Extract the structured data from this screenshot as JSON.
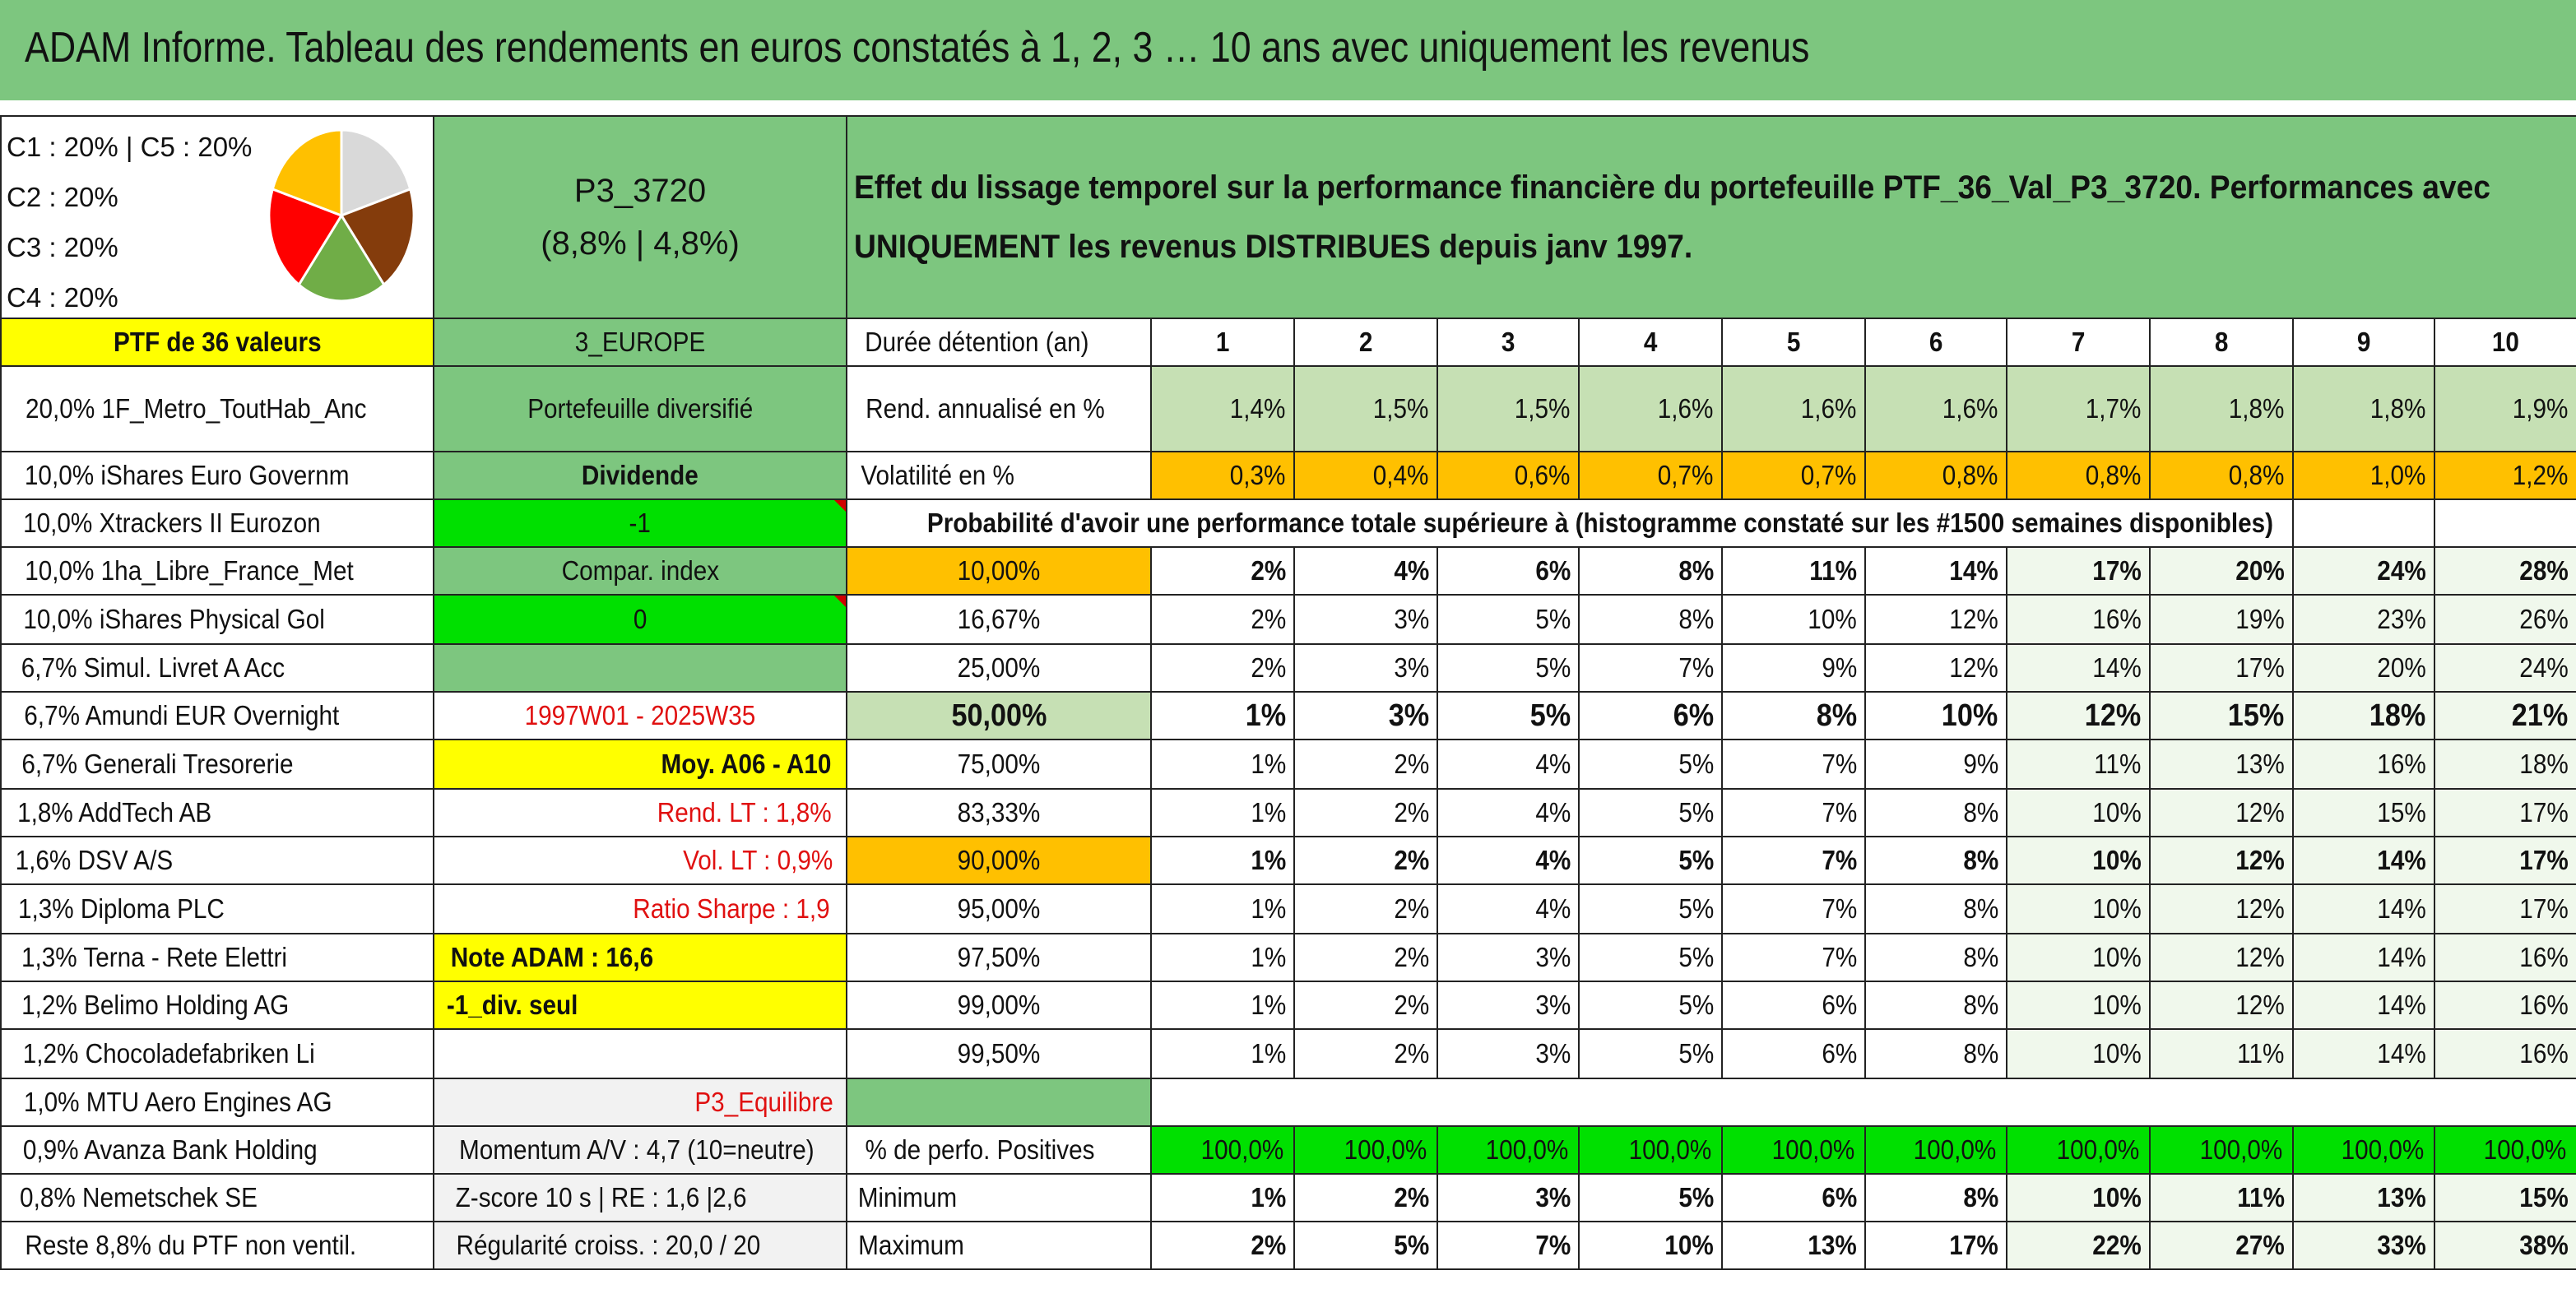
{
  "title": "ADAM Informe. Tableau des rendements en euros constatés à 1, 2, 3 … 10 ans avec uniquement les revenus",
  "allocation_lines": [
    "C1 : 20% | C5 : 20%",
    "C2 : 20%",
    "C3 : 20%",
    "C4 : 20%"
  ],
  "pie": {
    "slices": [
      {
        "label": "C1",
        "value": 20,
        "color": "#d9d9d9"
      },
      {
        "label": "C2",
        "value": 20,
        "color": "#843c0c"
      },
      {
        "label": "C3",
        "value": 20,
        "color": "#70ad47"
      },
      {
        "label": "C4",
        "value": 20,
        "color": "#ff0000"
      },
      {
        "label": "C5",
        "value": 20,
        "color": "#ffc000"
      }
    ]
  },
  "portfolio": {
    "code": "P3_3720",
    "rates": "(8,8% | 4,8%)",
    "count_label": "PTF de 36 valeurs",
    "zone": "3_EUROPE"
  },
  "description": {
    "line1": "Effet du lissage temporel sur la performance financière du portefeuille PTF_36_Val_P3_3720. Performances avec",
    "line2": "UNIQUEMENT les revenus DISTRIBUES depuis janv 1997."
  },
  "headers": {
    "duration": "Durée détention (an)",
    "years": [
      "1",
      "2",
      "3",
      "4",
      "5",
      "6",
      "7",
      "8",
      "9",
      "10"
    ],
    "rend": "Rend. annualisé en %",
    "vol": "Volatilité en %",
    "prob": "Probabilité d'avoir une performance totale supérieure à (histogramme constaté sur les #1500 semaines disponibles)",
    "positive": "% de perfo. Positives",
    "minimum": "Minimum",
    "maximum": "Maximum"
  },
  "rend_values": [
    "1,4%",
    "1,5%",
    "1,5%",
    "1,6%",
    "1,6%",
    "1,6%",
    "1,7%",
    "1,8%",
    "1,8%",
    "1,9%"
  ],
  "vol_values": [
    "0,3%",
    "0,4%",
    "0,6%",
    "0,7%",
    "0,7%",
    "0,8%",
    "0,8%",
    "0,8%",
    "1,0%",
    "1,2%"
  ],
  "holdings": [
    "20,0% 1F_Metro_ToutHab_Anc",
    "10,0% iShares Euro Governm",
    "10,0% Xtrackers II Eurozon",
    "10,0% 1ha_Libre_France_Met",
    "10,0% iShares Physical Gol",
    "6,7% Simul. Livret A Acc",
    "6,7% Amundi EUR Overnight",
    "6,7% Generali Tresorerie",
    "1,8% AddTech AB",
    "1,6% DSV A/S",
    "1,3% Diploma PLC",
    "1,3% Terna - Rete Elettri",
    "1,2% Belimo Holding AG",
    "1,2% Chocoladefabriken Li",
    "1,0% MTU Aero Engines AG",
    "0,9% Avanza Bank Holding",
    "0,8% Nemetschek SE",
    "Reste 8,8% du PTF non ventil."
  ],
  "info": {
    "type": "Portefeuille diversifié",
    "dividend": "Dividende",
    "minus_one": "-1",
    "compar": "Compar. index",
    "zero": "0",
    "period": "1997W01 - 2025W35",
    "moy": "Moy. A06 - A10",
    "rend_lt": "Rend. LT : 1,8%",
    "vol_lt": "Vol. LT : 0,9%",
    "sharpe": "Ratio Sharpe : 1,9",
    "note": "Note ADAM : 16,6",
    "div_seul": "-1_div. seul",
    "equilibre": "P3_Equilibre",
    "momentum": "Momentum A/V : 4,7 (10=neutre)",
    "zscore": "Z-score 10 s | RE : 1,6 |2,6",
    "regularite": "Régularité croiss. : 20,0 / 20"
  },
  "percentiles": [
    {
      "p": "10,00%",
      "v": [
        "2%",
        "4%",
        "6%",
        "8%",
        "11%",
        "14%",
        "17%",
        "20%",
        "24%",
        "28%"
      ]
    },
    {
      "p": "16,67%",
      "v": [
        "2%",
        "3%",
        "5%",
        "8%",
        "10%",
        "12%",
        "16%",
        "19%",
        "23%",
        "26%"
      ]
    },
    {
      "p": "25,00%",
      "v": [
        "2%",
        "3%",
        "5%",
        "7%",
        "9%",
        "12%",
        "14%",
        "17%",
        "20%",
        "24%"
      ]
    },
    {
      "p": "50,00%",
      "v": [
        "1%",
        "3%",
        "5%",
        "6%",
        "8%",
        "10%",
        "12%",
        "15%",
        "18%",
        "21%"
      ]
    },
    {
      "p": "75,00%",
      "v": [
        "1%",
        "2%",
        "4%",
        "5%",
        "7%",
        "9%",
        "11%",
        "13%",
        "16%",
        "18%"
      ]
    },
    {
      "p": "83,33%",
      "v": [
        "1%",
        "2%",
        "4%",
        "5%",
        "7%",
        "8%",
        "10%",
        "12%",
        "15%",
        "17%"
      ]
    },
    {
      "p": "90,00%",
      "v": [
        "1%",
        "2%",
        "4%",
        "5%",
        "7%",
        "8%",
        "10%",
        "12%",
        "14%",
        "17%"
      ]
    },
    {
      "p": "95,00%",
      "v": [
        "1%",
        "2%",
        "4%",
        "5%",
        "7%",
        "8%",
        "10%",
        "12%",
        "14%",
        "17%"
      ]
    },
    {
      "p": "97,50%",
      "v": [
        "1%",
        "2%",
        "3%",
        "5%",
        "7%",
        "8%",
        "10%",
        "12%",
        "14%",
        "16%"
      ]
    },
    {
      "p": "99,00%",
      "v": [
        "1%",
        "2%",
        "3%",
        "5%",
        "6%",
        "8%",
        "10%",
        "12%",
        "14%",
        "16%"
      ]
    },
    {
      "p": "99,50%",
      "v": [
        "1%",
        "2%",
        "3%",
        "5%",
        "6%",
        "8%",
        "10%",
        "11%",
        "14%",
        "16%"
      ]
    }
  ],
  "positive_values": [
    "100,0%",
    "100,0%",
    "100,0%",
    "100,0%",
    "100,0%",
    "100,0%",
    "100,0%",
    "100,0%",
    "100,0%",
    "100,0%"
  ],
  "min_values": [
    "1%",
    "2%",
    "3%",
    "5%",
    "6%",
    "8%",
    "10%",
    "11%",
    "13%",
    "15%"
  ],
  "max_values": [
    "2%",
    "5%",
    "7%",
    "10%",
    "13%",
    "17%",
    "22%",
    "27%",
    "33%",
    "38%"
  ]
}
